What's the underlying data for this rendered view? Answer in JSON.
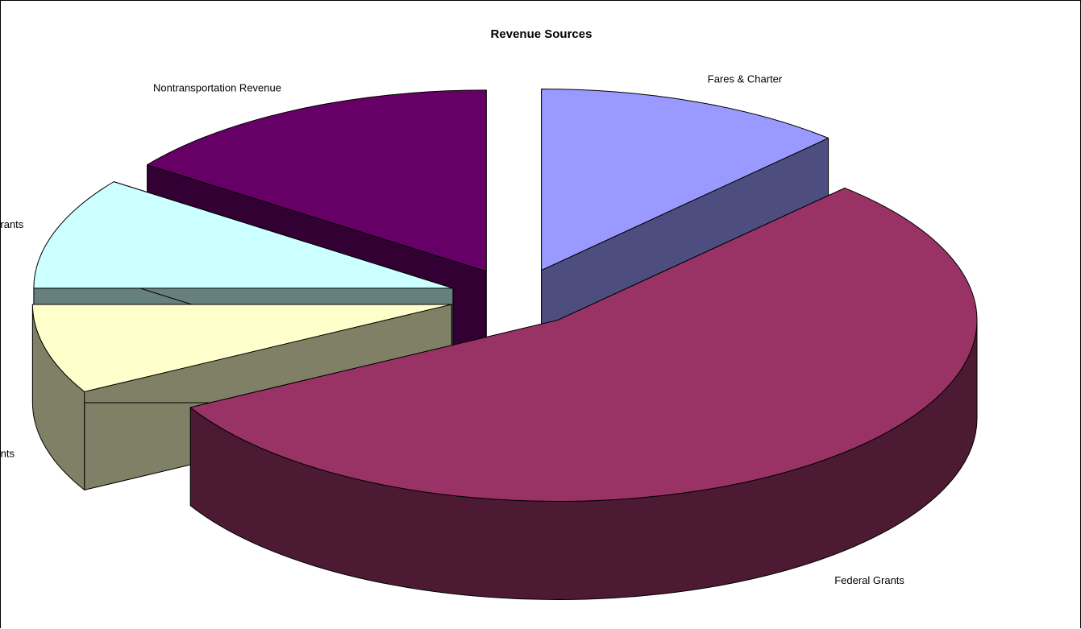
{
  "chart_data": {
    "type": "pie",
    "style": "3d-exploded",
    "title": "Revenue Sources",
    "legend": "none",
    "categories": [
      "Fares & Charter",
      "Federal Grants",
      "State Grants",
      "Local Grants",
      "Nontransportation Revenue"
    ],
    "values": [
      12,
      55,
      8,
      10,
      15
    ],
    "colors": {
      "top": [
        "#9999FF",
        "#993366",
        "#FFFFCC",
        "#CCFFFF",
        "#660066"
      ],
      "side": [
        "#4D4D80",
        "#4D1A33",
        "#808066",
        "#668080",
        "#330033"
      ]
    }
  }
}
